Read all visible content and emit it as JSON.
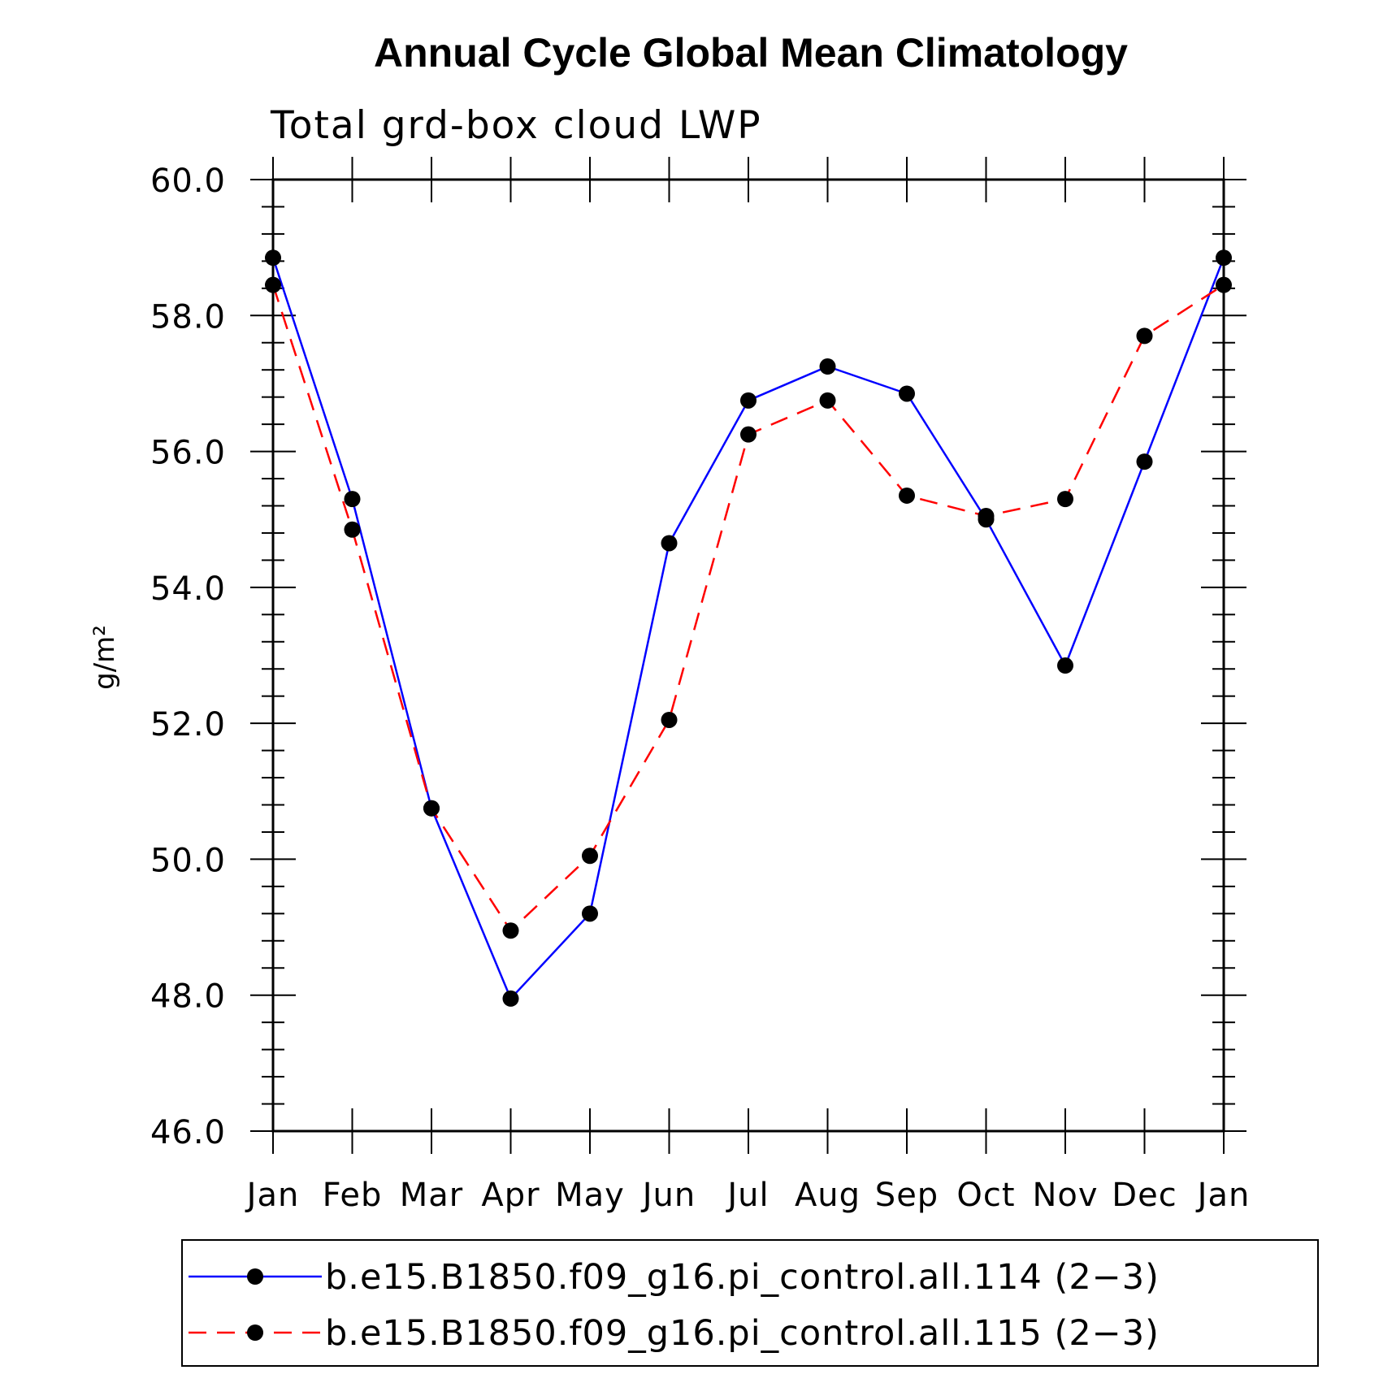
{
  "chart_data": {
    "type": "line",
    "title": "Annual Cycle Global Mean Climatology",
    "subtitle": "Total grd-box cloud LWP",
    "xlabel": "",
    "ylabel": "g/m²",
    "ylim": [
      46.0,
      60.0
    ],
    "y_major_ticks": [
      "46.0",
      "48.0",
      "50.0",
      "52.0",
      "54.0",
      "56.0",
      "58.0",
      "60.0"
    ],
    "categories": [
      "Jan",
      "Feb",
      "Mar",
      "Apr",
      "May",
      "Jun",
      "Jul",
      "Aug",
      "Sep",
      "Oct",
      "Nov",
      "Dec",
      "Jan"
    ],
    "series": [
      {
        "name": "b.e15.B1850.f09_g16.pi_control.all.114 (2-3)",
        "legend_label": "b.e15.B1850.f09_g16.pi_control.all.114 (2−3)",
        "color": "#0000ff",
        "dash": "solid",
        "values": [
          58.85,
          55.3,
          50.75,
          47.95,
          49.2,
          54.65,
          56.75,
          57.25,
          56.85,
          55.0,
          52.85,
          55.85,
          58.85
        ]
      },
      {
        "name": "b.e15.B1850.f09_g16.pi_control.all.115 (2-3)",
        "legend_label": "b.e15.B1850.f09_g16.pi_control.all.115 (2−3)",
        "color": "#ff0000",
        "dash": "dashed",
        "values": [
          58.45,
          54.85,
          50.75,
          48.95,
          50.05,
          52.05,
          56.25,
          56.75,
          55.35,
          55.05,
          55.3,
          57.7,
          58.45
        ]
      }
    ],
    "grid": false,
    "legend_position": "bottom"
  }
}
